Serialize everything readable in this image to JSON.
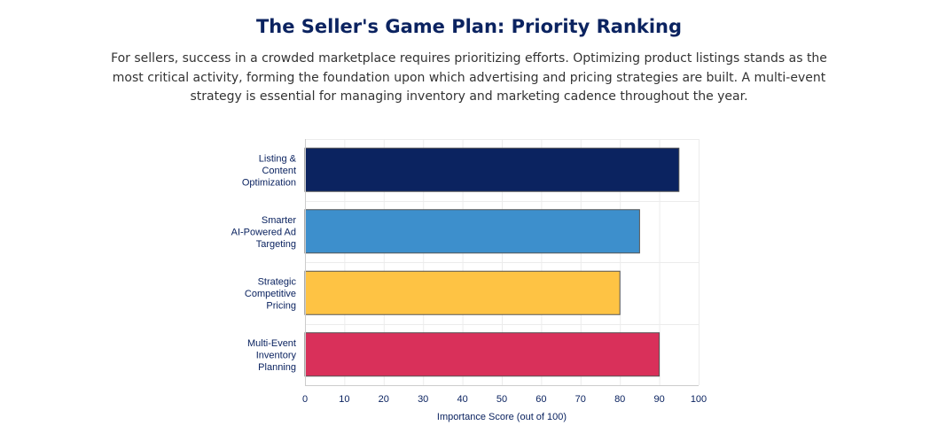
{
  "header": {
    "title": "The Seller's Game Plan: Priority Ranking",
    "subtitle": "For sellers, success in a crowded marketplace requires prioritizing efforts. Optimizing product listings stands as the most critical activity, forming the foundation upon which advertising and pricing strategies are built. A multi-event strategy is essential for managing inventory and marketing cadence throughout the year."
  },
  "chart_data": {
    "type": "bar",
    "orientation": "horizontal",
    "categories": [
      [
        "Listing &",
        "Content",
        "Optimization"
      ],
      [
        "Smarter",
        "AI-Powered Ad",
        "Targeting"
      ],
      [
        "Strategic",
        "Competitive",
        "Pricing"
      ],
      [
        "Multi-Event",
        "Inventory",
        "Planning"
      ]
    ],
    "values": [
      95,
      85,
      80,
      90
    ],
    "colors": [
      "#0b2360",
      "#3d8fcc",
      "#fec344",
      "#d9305a"
    ],
    "xlabel": "Importance Score (out of 100)",
    "ylabel": "",
    "xlim": [
      0,
      100
    ],
    "xticks": [
      0,
      10,
      20,
      30,
      40,
      50,
      60,
      70,
      80,
      90,
      100
    ],
    "grid": true,
    "legend": "none"
  }
}
